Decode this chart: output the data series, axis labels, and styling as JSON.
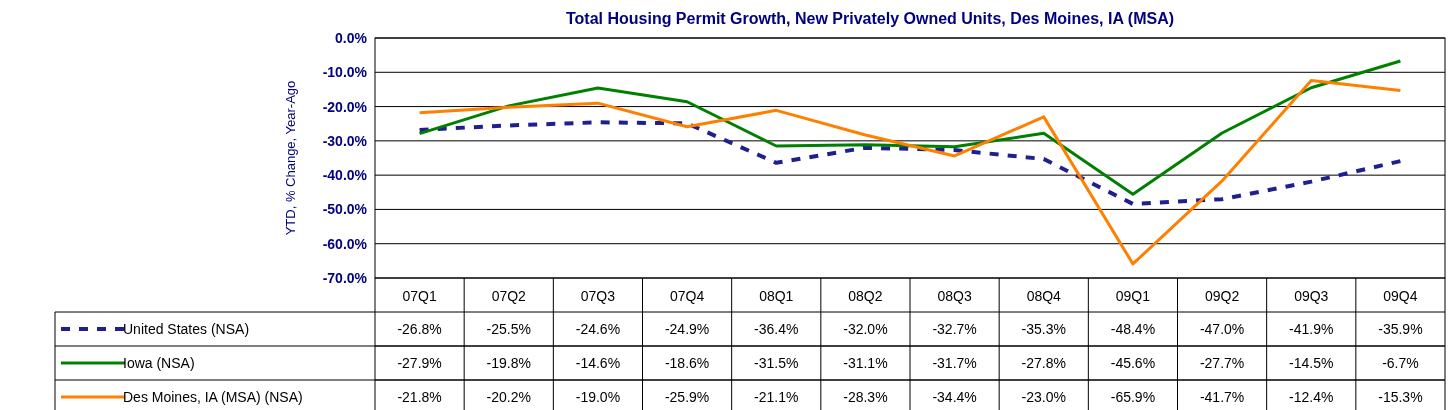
{
  "chart_data": {
    "type": "line",
    "title": "Total Housing Permit Growth, New Privately Owned Units, Des Moines, IA (MSA)",
    "ylabel": "YTD, % Change, Year-Ago",
    "categories": [
      "07Q1",
      "07Q2",
      "07Q3",
      "07Q4",
      "08Q1",
      "08Q2",
      "08Q3",
      "08Q4",
      "09Q1",
      "09Q2",
      "09Q3",
      "09Q4"
    ],
    "ylim": [
      -70,
      0
    ],
    "yticks": [
      {
        "value": -70,
        "label": "-70.0%"
      },
      {
        "value": -60,
        "label": "-60.0%"
      },
      {
        "value": -50,
        "label": "-50.0%"
      },
      {
        "value": -40,
        "label": "-40.0%"
      },
      {
        "value": -30,
        "label": "-30.0%"
      },
      {
        "value": -20,
        "label": "-20.0%"
      },
      {
        "value": -10,
        "label": "-10.0%"
      },
      {
        "value": 0,
        "label": "0.0%"
      }
    ],
    "grid": "y",
    "legend": "bottom",
    "series": [
      {
        "name": "United States (NSA)",
        "color": "#1f1f8f",
        "line_style": "dashed",
        "values": [
          -26.8,
          -25.5,
          -24.6,
          -24.9,
          -36.4,
          -32.0,
          -32.7,
          -35.3,
          -48.4,
          -47.0,
          -41.9,
          -35.9
        ],
        "value_labels": [
          "-26.8%",
          "-25.5%",
          "-24.6%",
          "-24.9%",
          "-36.4%",
          "-32.0%",
          "-32.7%",
          "-35.3%",
          "-48.4%",
          "-47.0%",
          "-41.9%",
          "-35.9%"
        ]
      },
      {
        "name": "Iowa (NSA)",
        "color": "#008000",
        "line_style": "solid",
        "values": [
          -27.9,
          -19.8,
          -14.6,
          -18.6,
          -31.5,
          -31.1,
          -31.7,
          -27.8,
          -45.6,
          -27.7,
          -14.5,
          -6.7
        ],
        "value_labels": [
          "-27.9%",
          "-19.8%",
          "-14.6%",
          "-18.6%",
          "-31.5%",
          "-31.1%",
          "-31.7%",
          "-27.8%",
          "-45.6%",
          "-27.7%",
          "-14.5%",
          "-6.7%"
        ]
      },
      {
        "name": "Des Moines, IA (MSA) (NSA)",
        "color": "#ff8000",
        "line_style": "solid",
        "values": [
          -21.8,
          -20.2,
          -19.0,
          -25.9,
          -21.1,
          -28.3,
          -34.4,
          -23.0,
          -65.9,
          -41.7,
          -12.4,
          -15.3
        ],
        "value_labels": [
          "-21.8%",
          "-20.2%",
          "-19.0%",
          "-25.9%",
          "-21.1%",
          "-28.3%",
          "-34.4%",
          "-23.0%",
          "-65.9%",
          "-41.7%",
          "-12.4%",
          "-15.3%"
        ]
      }
    ]
  }
}
